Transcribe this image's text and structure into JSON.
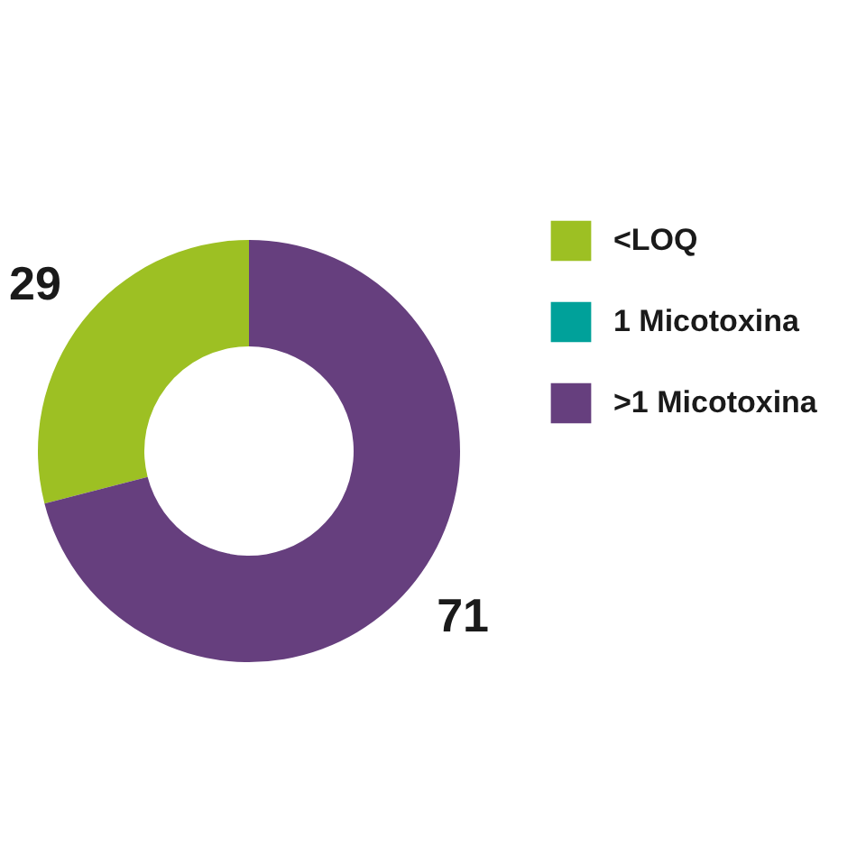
{
  "chart_data": {
    "type": "donut",
    "categories": [
      "<LOQ",
      "1 Micotoxina",
      ">1 Micotoxina"
    ],
    "values": [
      29,
      0,
      71
    ],
    "colors": [
      "#9dc023",
      "#00a19a",
      "#663f7e"
    ],
    "data_labels": true,
    "legend": "right"
  }
}
